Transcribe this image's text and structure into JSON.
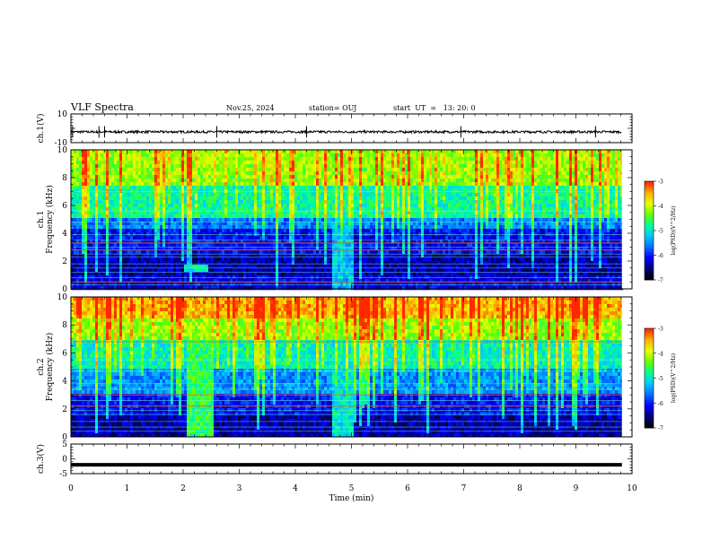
{
  "header": {
    "title": "VLF Spectra",
    "date": "Nov.25, 2024",
    "station": "station= OUJ",
    "start_time": "start  UT  =   13: 20: 0"
  },
  "colors": {
    "background": "#ffffff",
    "waveform": "#000000",
    "colormap": [
      "#000000",
      "#00007a",
      "#0000ff",
      "#0070ff",
      "#00c8ff",
      "#00ff96",
      "#64ff00",
      "#e6ff00",
      "#ffb400",
      "#ff2800",
      "#ffffff"
    ]
  },
  "chart_data": [
    {
      "type": "line",
      "panel": "ch1-waveform",
      "ylabel": "ch.1(V)",
      "ylim": [
        -10,
        10
      ],
      "yticks": [
        "10",
        "-10"
      ],
      "xlim": [
        0,
        10
      ],
      "series": [
        {
          "mean": -2.5,
          "noise": 0.8,
          "spikes": [
            0.03,
            0.5,
            0.6,
            2.6,
            4.2,
            6.95,
            9.35
          ]
        }
      ]
    },
    {
      "type": "heatmap",
      "panel": "ch1-spectrogram",
      "ylabel": "ch.1\nFrequency  (kHz)",
      "ylim": [
        0,
        10
      ],
      "yticks": [
        "0",
        "2",
        "4",
        "6",
        "8",
        "10"
      ],
      "xlim": [
        0,
        10
      ],
      "colorbar": {
        "label": "log(PSD)(V^2/Hz)",
        "range": [
          -7,
          -3
        ],
        "ticks": [
          "-3",
          "-4",
          "-5",
          "-6",
          "-7"
        ]
      },
      "bands": [
        {
          "f_low": 7.5,
          "f_high": 10,
          "level": -4.2
        },
        {
          "f_low": 5.0,
          "f_high": 7.5,
          "level": -4.8
        },
        {
          "f_low": 4.2,
          "f_high": 5.0,
          "level": -5.6
        },
        {
          "f_low": 2.5,
          "f_high": 4.2,
          "level": -6.1
        },
        {
          "f_low": 1.0,
          "f_high": 2.5,
          "level": -6.4
        },
        {
          "f_low": 0.0,
          "f_high": 1.0,
          "level": -6.2
        }
      ],
      "lines_khz": [
        7.0,
        5.6,
        4.8,
        3.9,
        3.5,
        3.3,
        3.0,
        2.8,
        2.5,
        2.3,
        1.8,
        1.5,
        1.2,
        0.8,
        0.5,
        0.3
      ],
      "strong_lines_khz": [
        3.3,
        2.8,
        0.5
      ],
      "events": [
        {
          "t_min": 4.65,
          "t_max": 5.0,
          "level": -5.3
        },
        {
          "t_min": 2.0,
          "t_max": 2.4,
          "f_low": 1.3,
          "f_high": 1.8,
          "level": -4.9
        }
      ]
    },
    {
      "type": "heatmap",
      "panel": "ch2-spectrogram",
      "ylabel": "ch.2\nFrequency  (kHz)",
      "ylim": [
        0,
        10
      ],
      "yticks": [
        "0",
        "2",
        "4",
        "6",
        "8",
        "10"
      ],
      "xlim": [
        0,
        10
      ],
      "colorbar": {
        "label": "log(PSD)(V^2/Hz)",
        "range": [
          -7,
          -3
        ],
        "ticks": [
          "-3",
          "-4",
          "-5",
          "-6",
          "-7"
        ]
      },
      "bands": [
        {
          "f_low": 8.5,
          "f_high": 10,
          "level": -3.6
        },
        {
          "f_low": 7.0,
          "f_high": 8.5,
          "level": -4.2
        },
        {
          "f_low": 5.0,
          "f_high": 7.0,
          "level": -4.9
        },
        {
          "f_low": 3.0,
          "f_high": 5.0,
          "level": -5.5
        },
        {
          "f_low": 1.5,
          "f_high": 3.0,
          "level": -6.1
        },
        {
          "f_low": 0.0,
          "f_high": 1.5,
          "level": -6.4
        }
      ],
      "lines_khz": [
        6.8,
        5.5,
        4.7,
        3.8,
        3.4,
        3.0,
        2.6,
        2.2,
        1.9,
        1.6,
        1.1,
        0.7,
        0.4
      ],
      "strong_lines_khz": [
        6.8,
        3.0,
        2.2
      ],
      "events": [
        {
          "t_min": 2.05,
          "t_max": 2.5,
          "level": -4.6
        },
        {
          "t_min": 4.65,
          "t_max": 5.0,
          "level": -5.0
        }
      ]
    },
    {
      "type": "line",
      "panel": "ch3-waveform",
      "ylabel": "ch.3(V)",
      "ylim": [
        -5,
        5
      ],
      "yticks": [
        "5",
        "0",
        "-5"
      ],
      "xlabel": "Time  (min)",
      "xlim": [
        0,
        10
      ],
      "xticks": [
        "0",
        "1",
        "2",
        "3",
        "4",
        "5",
        "6",
        "7",
        "8",
        "9",
        "10"
      ],
      "series": [
        {
          "mean": -2.0,
          "noise": 0.0,
          "spikes": []
        }
      ]
    }
  ]
}
